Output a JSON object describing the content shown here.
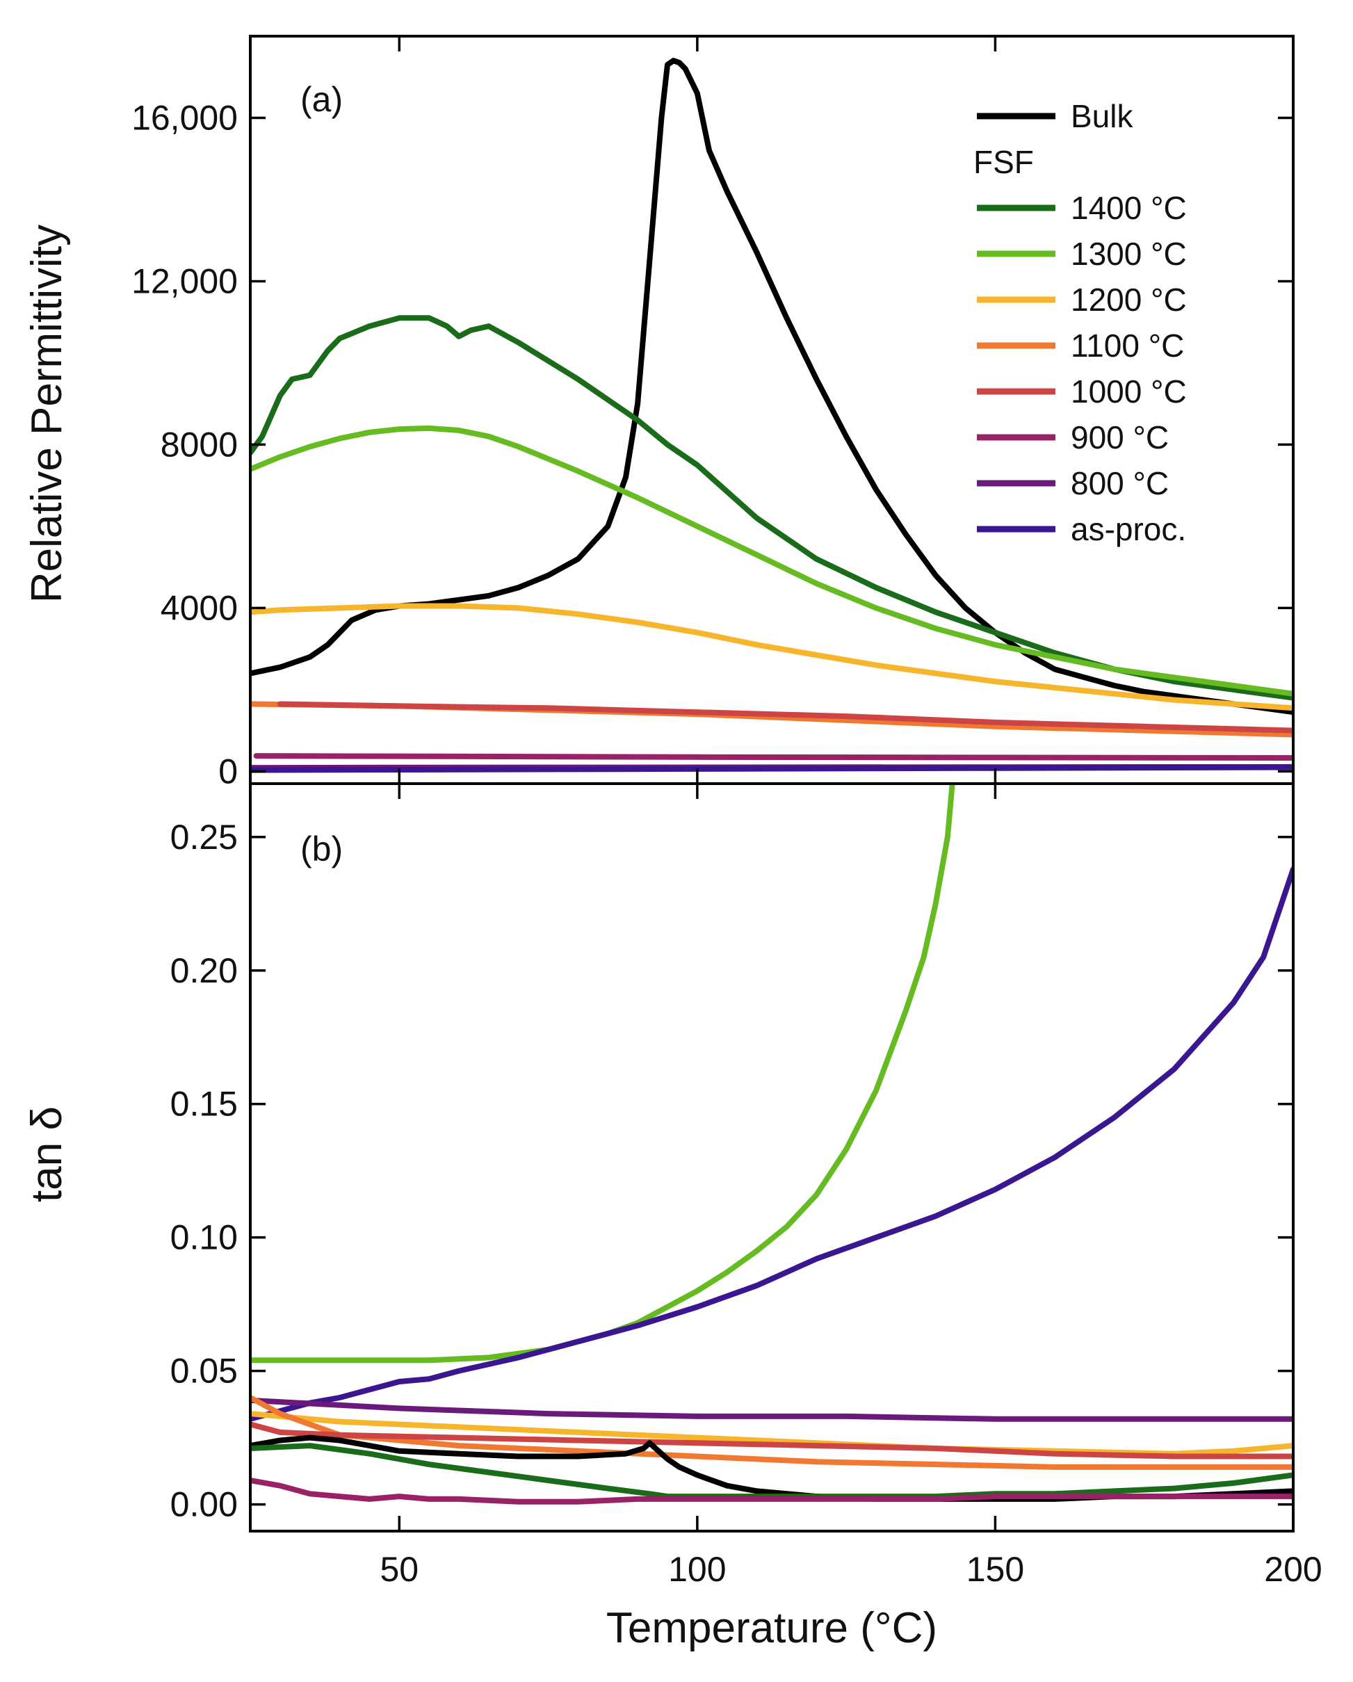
{
  "chart_data": [
    {
      "type": "line",
      "panel_label": "(a)",
      "xlabel": "",
      "ylabel": "Relative Permittivity",
      "xlim": [
        25,
        200
      ],
      "ylim": [
        -300,
        18000
      ],
      "x_ticks": [
        50,
        100,
        150
      ],
      "y_ticks": [
        {
          "value": 0,
          "label": "0"
        },
        {
          "value": 4000,
          "label": "4000"
        },
        {
          "value": 8000,
          "label": "8000"
        },
        {
          "value": 12000,
          "label": "12,000"
        },
        {
          "value": 16000,
          "label": "16,000"
        }
      ],
      "legend": {
        "placement": "top-right",
        "group_label": "FSF",
        "entries": [
          {
            "label": "Bulk",
            "color": "#000000"
          },
          {
            "label": "1400 °C",
            "color": "#1a6b1a"
          },
          {
            "label": "1300 °C",
            "color": "#66bb22"
          },
          {
            "label": "1200 °C",
            "color": "#f7b52c"
          },
          {
            "label": "1100 °C",
            "color": "#f07830"
          },
          {
            "label": "1000 °C",
            "color": "#cc4444"
          },
          {
            "label": "900 °C",
            "color": "#992266"
          },
          {
            "label": "800 °C",
            "color": "#6a1a7a"
          },
          {
            "label": "as-proc.",
            "color": "#3a1790"
          }
        ]
      },
      "series": [
        {
          "name": "Bulk",
          "color": "#000000",
          "x": [
            25,
            30,
            35,
            38,
            42,
            46,
            50,
            55,
            60,
            65,
            70,
            75,
            80,
            85,
            88,
            90,
            92,
            94,
            95,
            96,
            97,
            98,
            100,
            102,
            105,
            110,
            115,
            120,
            125,
            130,
            135,
            140,
            145,
            150,
            155,
            160,
            165,
            170,
            175,
            180,
            185,
            190,
            195,
            200
          ],
          "y": [
            2400,
            2550,
            2800,
            3100,
            3700,
            3950,
            4050,
            4100,
            4200,
            4300,
            4500,
            4800,
            5200,
            6000,
            7200,
            9000,
            12500,
            16000,
            17300,
            17400,
            17350,
            17200,
            16600,
            15200,
            14200,
            12700,
            11100,
            9600,
            8200,
            6900,
            5800,
            4800,
            4000,
            3400,
            2900,
            2500,
            2300,
            2100,
            1950,
            1850,
            1750,
            1650,
            1550,
            1450
          ]
        },
        {
          "name": "1400 °C",
          "color": "#1a6b1a",
          "x": [
            25,
            27,
            30,
            32,
            35,
            38,
            40,
            45,
            50,
            55,
            58,
            60,
            62,
            65,
            70,
            80,
            90,
            95,
            100,
            110,
            120,
            130,
            140,
            150,
            160,
            170,
            180,
            190,
            200
          ],
          "y": [
            7800,
            8200,
            9200,
            9600,
            9700,
            10300,
            10600,
            10900,
            11100,
            11100,
            10900,
            10650,
            10800,
            10900,
            10500,
            9600,
            8600,
            8000,
            7500,
            6200,
            5200,
            4500,
            3900,
            3400,
            2900,
            2500,
            2200,
            2000,
            1800
          ]
        },
        {
          "name": "1300 °C",
          "color": "#66bb22",
          "x": [
            25,
            30,
            35,
            40,
            45,
            50,
            55,
            60,
            65,
            70,
            80,
            90,
            100,
            110,
            120,
            130,
            140,
            150,
            160,
            170,
            180,
            190,
            200
          ],
          "y": [
            7400,
            7700,
            7950,
            8150,
            8300,
            8380,
            8400,
            8350,
            8200,
            7950,
            7350,
            6700,
            6000,
            5300,
            4600,
            4000,
            3500,
            3100,
            2800,
            2500,
            2300,
            2100,
            1900
          ]
        },
        {
          "name": "1200 °C",
          "color": "#f7b52c",
          "x": [
            25,
            30,
            40,
            50,
            60,
            70,
            80,
            90,
            100,
            110,
            120,
            130,
            140,
            150,
            160,
            170,
            180,
            190,
            200
          ],
          "y": [
            3900,
            3950,
            4000,
            4050,
            4050,
            4000,
            3850,
            3650,
            3400,
            3100,
            2850,
            2600,
            2400,
            2200,
            2050,
            1900,
            1750,
            1650,
            1550
          ]
        },
        {
          "name": "1100 °C",
          "color": "#f07830",
          "x": [
            25,
            50,
            75,
            100,
            125,
            150,
            175,
            200
          ],
          "y": [
            1650,
            1600,
            1500,
            1400,
            1250,
            1100,
            1000,
            900
          ]
        },
        {
          "name": "1000 °C",
          "color": "#cc4444",
          "x": [
            30,
            50,
            75,
            100,
            125,
            150,
            175,
            200
          ],
          "y": [
            1650,
            1600,
            1550,
            1450,
            1350,
            1200,
            1100,
            1000
          ]
        },
        {
          "name": "900 °C",
          "color": "#992266",
          "x": [
            26,
            50,
            100,
            150,
            200
          ],
          "y": [
            380,
            370,
            350,
            340,
            330
          ]
        },
        {
          "name": "800 °C",
          "color": "#6a1a7a",
          "x": [
            25,
            50,
            100,
            150,
            200
          ],
          "y": [
            90,
            95,
            100,
            105,
            110
          ]
        },
        {
          "name": "as-proc.",
          "color": "#3a1790",
          "x": [
            25,
            50,
            100,
            150,
            200
          ],
          "y": [
            30,
            40,
            60,
            80,
            100
          ]
        }
      ]
    },
    {
      "type": "line",
      "panel_label": "(b)",
      "xlabel": "Temperature (°C)",
      "ylabel": "tan δ",
      "xlim": [
        25,
        200
      ],
      "ylim": [
        -0.01,
        0.27
      ],
      "x_ticks": [
        {
          "value": 50,
          "label": "50"
        },
        {
          "value": 100,
          "label": "100"
        },
        {
          "value": 150,
          "label": "150"
        },
        {
          "value": 200,
          "label": "200"
        }
      ],
      "y_ticks": [
        {
          "value": 0.0,
          "label": "0.00"
        },
        {
          "value": 0.05,
          "label": "0.05"
        },
        {
          "value": 0.1,
          "label": "0.10"
        },
        {
          "value": 0.15,
          "label": "0.15"
        },
        {
          "value": 0.2,
          "label": "0.20"
        },
        {
          "value": 0.25,
          "label": "0.25"
        }
      ],
      "series": [
        {
          "name": "1300 °C",
          "color": "#66bb22",
          "x": [
            25,
            35,
            45,
            55,
            65,
            75,
            85,
            90,
            95,
            100,
            105,
            110,
            115,
            120,
            125,
            130,
            135,
            138,
            140,
            142,
            143
          ],
          "y": [
            0.054,
            0.054,
            0.054,
            0.054,
            0.055,
            0.058,
            0.064,
            0.068,
            0.074,
            0.08,
            0.087,
            0.095,
            0.104,
            0.116,
            0.133,
            0.155,
            0.185,
            0.205,
            0.225,
            0.25,
            0.275
          ]
        },
        {
          "name": "as-proc.",
          "color": "#3a1790",
          "x": [
            25,
            30,
            35,
            40,
            45,
            50,
            55,
            60,
            70,
            80,
            90,
            100,
            110,
            120,
            130,
            140,
            150,
            160,
            170,
            180,
            190,
            195,
            200
          ],
          "y": [
            0.032,
            0.035,
            0.038,
            0.04,
            0.043,
            0.046,
            0.047,
            0.05,
            0.055,
            0.061,
            0.067,
            0.074,
            0.082,
            0.092,
            0.1,
            0.108,
            0.118,
            0.13,
            0.145,
            0.163,
            0.188,
            0.205,
            0.238
          ]
        },
        {
          "name": "800 °C",
          "color": "#6a1a7a",
          "x": [
            25,
            50,
            75,
            100,
            125,
            150,
            175,
            200
          ],
          "y": [
            0.039,
            0.036,
            0.034,
            0.033,
            0.033,
            0.032,
            0.032,
            0.032
          ]
        },
        {
          "name": "1200 °C",
          "color": "#f7b52c",
          "x": [
            25,
            40,
            60,
            80,
            100,
            120,
            140,
            160,
            180,
            190,
            200
          ],
          "y": [
            0.034,
            0.031,
            0.029,
            0.027,
            0.025,
            0.023,
            0.021,
            0.02,
            0.019,
            0.02,
            0.022
          ]
        },
        {
          "name": "1100 °C",
          "color": "#f07830",
          "x": [
            25,
            30,
            40,
            60,
            80,
            100,
            120,
            140,
            160,
            180,
            200
          ],
          "y": [
            0.04,
            0.034,
            0.026,
            0.022,
            0.02,
            0.018,
            0.016,
            0.015,
            0.014,
            0.014,
            0.014
          ]
        },
        {
          "name": "1000 °C",
          "color": "#cc4444",
          "x": [
            25,
            30,
            40,
            60,
            80,
            100,
            120,
            140,
            160,
            180,
            200
          ],
          "y": [
            0.03,
            0.027,
            0.026,
            0.025,
            0.024,
            0.023,
            0.022,
            0.021,
            0.019,
            0.018,
            0.018
          ]
        },
        {
          "name": "Bulk",
          "color": "#000000",
          "x": [
            25,
            30,
            35,
            40,
            45,
            50,
            60,
            70,
            80,
            88,
            91,
            92,
            93,
            95,
            97,
            100,
            105,
            110,
            120,
            130,
            140,
            150,
            160,
            170,
            180,
            190,
            200
          ],
          "y": [
            0.022,
            0.024,
            0.025,
            0.024,
            0.022,
            0.02,
            0.019,
            0.018,
            0.018,
            0.019,
            0.021,
            0.023,
            0.021,
            0.017,
            0.014,
            0.011,
            0.007,
            0.005,
            0.003,
            0.002,
            0.002,
            0.002,
            0.002,
            0.003,
            0.003,
            0.004,
            0.005
          ]
        },
        {
          "name": "1400 °C",
          "color": "#1a6b1a",
          "x": [
            25,
            35,
            45,
            55,
            65,
            75,
            85,
            92,
            95,
            100,
            110,
            120,
            130,
            140,
            150,
            160,
            170,
            180,
            190,
            200
          ],
          "y": [
            0.021,
            0.022,
            0.019,
            0.015,
            0.012,
            0.009,
            0.006,
            0.004,
            0.003,
            0.003,
            0.003,
            0.003,
            0.003,
            0.003,
            0.004,
            0.004,
            0.005,
            0.006,
            0.008,
            0.011
          ]
        },
        {
          "name": "900 °C",
          "color": "#992266",
          "x": [
            25,
            30,
            35,
            40,
            45,
            50,
            55,
            60,
            70,
            80,
            90,
            100,
            110,
            120,
            130,
            140,
            150,
            160,
            170,
            180,
            190,
            200
          ],
          "y": [
            0.009,
            0.007,
            0.004,
            0.003,
            0.002,
            0.003,
            0.002,
            0.002,
            0.001,
            0.001,
            0.002,
            0.002,
            0.002,
            0.002,
            0.002,
            0.002,
            0.003,
            0.003,
            0.003,
            0.003,
            0.003,
            0.003
          ]
        }
      ]
    }
  ]
}
